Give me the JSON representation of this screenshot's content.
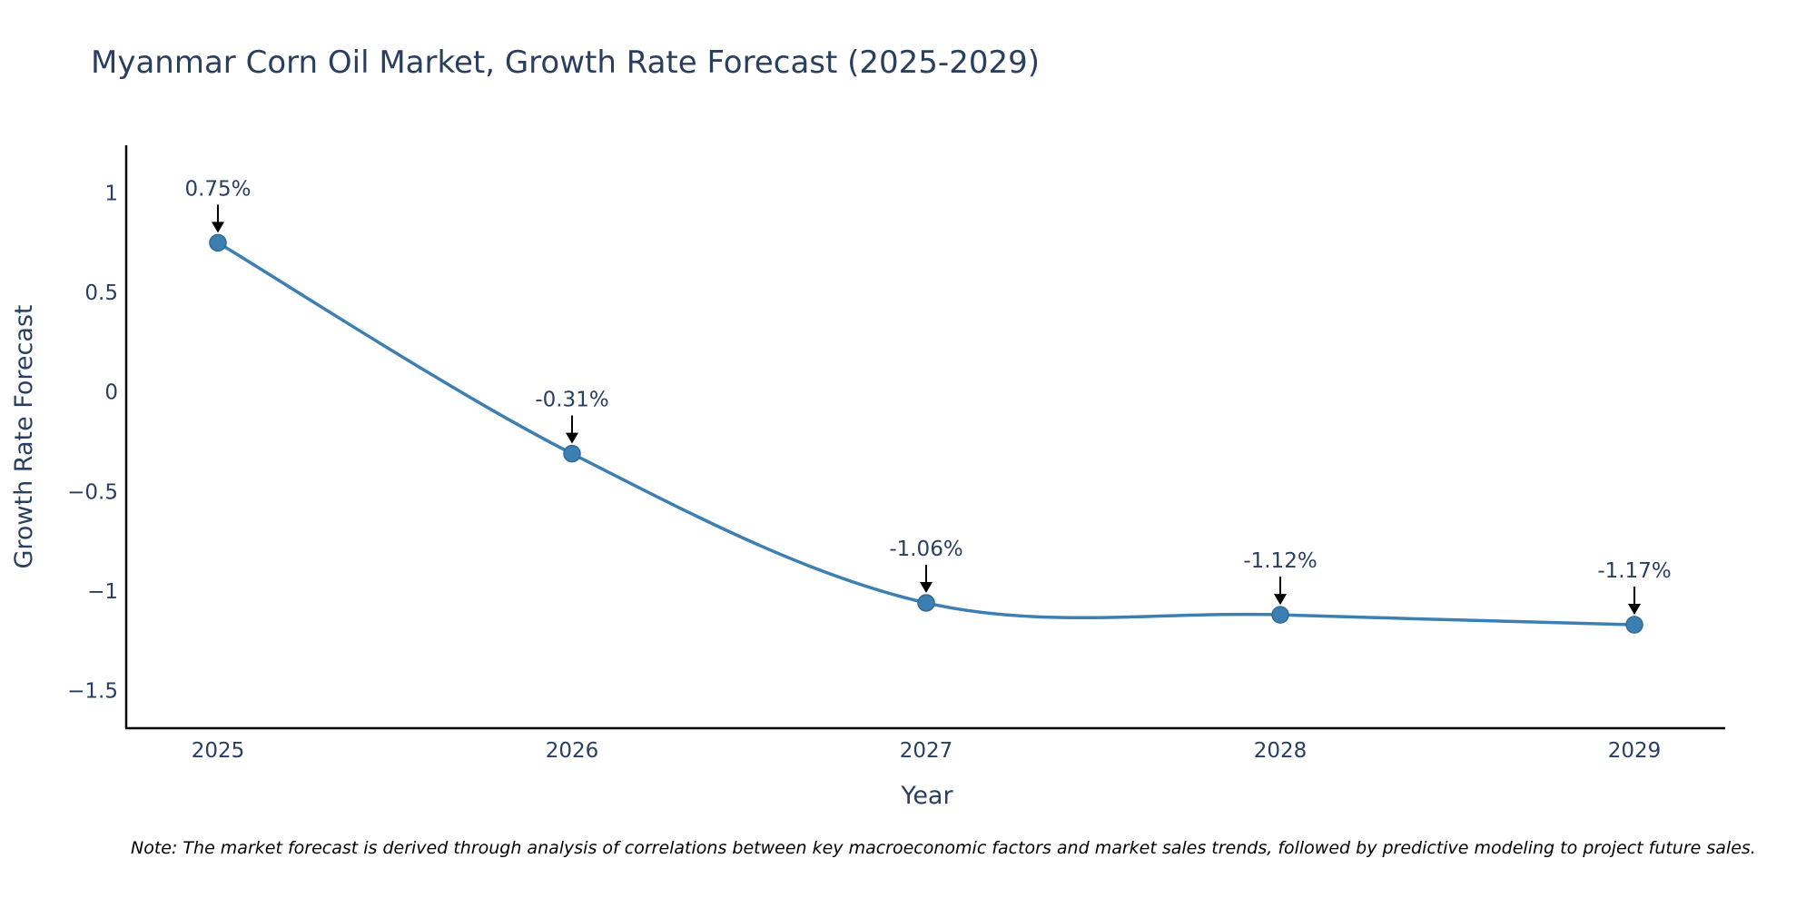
{
  "chart_data": {
    "type": "line",
    "title": "Myanmar Corn Oil Market, Growth Rate Forecast (2025-2029)",
    "xlabel": "Year",
    "ylabel": "Growth Rate Forecast",
    "categories": [
      "2025",
      "2026",
      "2027",
      "2028",
      "2029"
    ],
    "series": [
      {
        "name": "Growth Rate Forecast",
        "values": [
          0.75,
          -0.31,
          -1.06,
          -1.12,
          -1.17
        ],
        "color": "#3d7fb1"
      }
    ],
    "data_labels": [
      "0.75%",
      "-0.31%",
      "-1.06%",
      "-1.12%",
      "-1.17%"
    ],
    "ylim": [
      -1.69,
      1.24
    ],
    "yticks": [
      {
        "value": 1,
        "label": "1"
      },
      {
        "value": 0.5,
        "label": "0.5"
      },
      {
        "value": 0,
        "label": "0"
      },
      {
        "value": -0.5,
        "label": "−0.5"
      },
      {
        "value": -1,
        "label": "−1"
      },
      {
        "value": -1.5,
        "label": "−1.5"
      }
    ],
    "grid": false,
    "legend": "none"
  },
  "note": "Note: The market forecast is derived through analysis of correlations between key macroeconomic factors and market sales trends, followed by predictive modeling to project future sales."
}
